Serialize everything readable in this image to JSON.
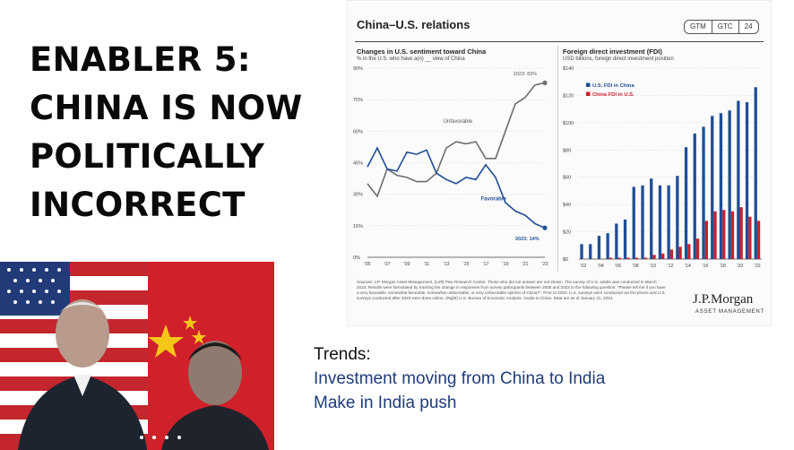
{
  "headline": [
    "ENABLER 5:",
    "CHINA IS NOW",
    "POLITICALLY",
    "INCORRECT"
  ],
  "panel": {
    "title": "China–U.S. relations",
    "badges": [
      "GTM",
      "GTC",
      "24"
    ],
    "logo": "J.P.Morgan",
    "logo_sub": "ASSET MANAGEMENT",
    "source": "Sources: J.P. Morgan Asset Management. (Left) Pew Research Center. Those who did not answer are not shown. The survey of U.S. adults was conducted in March 2023. Results were formulated by tracking the change in responses from survey participants between 2005 and 2023 to the following question: \"Please tell me if you have a very favorable, somewhat favorable, somewhat unfavorable, or very unfavorable opinion of China?\". Prior to 2020, U.S. surveys were conducted via the phone and U.S. surveys conducted after 2020 were done online. (Right) U.S. Bureau of Economic Analysis. Guide to China. Data are as of January 31, 2024."
  },
  "trends": {
    "label": "Trends:",
    "items": [
      "Investment moving from China to India",
      "Make in India push"
    ]
  },
  "colors": {
    "unfavorable": "#6d6d6d",
    "favorable": "#1f4e96",
    "us_fdi": "#1f4e96",
    "china_fdi": "#c8202f",
    "trend_text": "#1f3c7a"
  },
  "chart_data": [
    {
      "type": "line",
      "title": "Changes in U.S. sentiment toward China",
      "subtitle": "% in the U.S. who have a(n) __ view of China",
      "x_ticks": [
        "'05",
        "'07",
        "'09",
        "'11",
        "'13",
        "'15",
        "'17",
        "'19",
        "'21",
        "'23"
      ],
      "y_ticks": [
        "0%",
        "15%",
        "30%",
        "45%",
        "60%",
        "75%",
        "90%"
      ],
      "ylim": [
        0,
        90
      ],
      "x": [
        2005,
        2006,
        2007,
        2008,
        2009,
        2010,
        2011,
        2012,
        2013,
        2014,
        2015,
        2016,
        2017,
        2018,
        2019,
        2020,
        2021,
        2022,
        2023
      ],
      "series": [
        {
          "name": "Unfavorable",
          "values": [
            35,
            29,
            42,
            39,
            38,
            36,
            36,
            40,
            52,
            55,
            54,
            55,
            47,
            47,
            60,
            73,
            76,
            82,
            83
          ]
        },
        {
          "name": "Favorable",
          "values": [
            43,
            52,
            42,
            41,
            50,
            49,
            51,
            40,
            37,
            35,
            38,
            37,
            44,
            38,
            26,
            22,
            20,
            16,
            14
          ]
        }
      ],
      "annotations": [
        "2023: 83%",
        "2023: 14%"
      ]
    },
    {
      "type": "bar",
      "title": "Foreign direct investment (FDI)",
      "subtitle": "USD billions, foreign direct investment position",
      "x_ticks": [
        "'02",
        "'04",
        "'06",
        "'08",
        "'10",
        "'12",
        "'14",
        "'16",
        "'18",
        "'20",
        "'22"
      ],
      "y_ticks": [
        "$0",
        "$20",
        "$40",
        "$60",
        "$80",
        "$100",
        "$120",
        "$140"
      ],
      "ylim": [
        0,
        140
      ],
      "categories": [
        "2002",
        "2003",
        "2004",
        "2005",
        "2006",
        "2007",
        "2008",
        "2009",
        "2010",
        "2011",
        "2012",
        "2013",
        "2014",
        "2015",
        "2016",
        "2017",
        "2018",
        "2019",
        "2020",
        "2021",
        "2022"
      ],
      "series": [
        {
          "name": "U.S. FDI in China",
          "values": [
            11,
            11,
            17,
            19,
            26,
            29,
            53,
            54,
            59,
            54,
            54,
            61,
            82,
            92,
            97,
            105,
            107,
            109,
            116,
            115,
            126
          ]
        },
        {
          "name": "China FDI in U.S.",
          "values": [
            0,
            0,
            0,
            1,
            1,
            1,
            1,
            1,
            3,
            4,
            7,
            9,
            11,
            15,
            28,
            35,
            36,
            35,
            38,
            31,
            28
          ]
        }
      ]
    }
  ]
}
